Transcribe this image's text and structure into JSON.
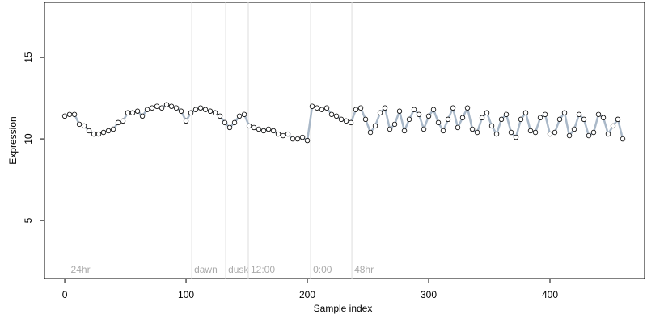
{
  "chart_data": {
    "type": "scatter",
    "xlabel": "Sample index",
    "ylabel": "Expression",
    "xlim": [
      -16.7,
      478
    ],
    "ylim": [
      1.44,
      18.37
    ],
    "xticks": [
      0,
      100,
      200,
      300,
      400
    ],
    "yticks": [
      5,
      10,
      15
    ],
    "line_color": "#a9b8c8",
    "point_color": "#ffffff",
    "annotations": [
      {
        "x": 3,
        "label": "24hr",
        "line": false
      },
      {
        "x": 104.7,
        "label": "dawn",
        "line": true
      },
      {
        "x": 132.7,
        "label": "dusk",
        "line": true
      },
      {
        "x": 151.3,
        "label": "12:00",
        "line": true
      },
      {
        "x": 202.7,
        "label": "0:00",
        "line": true
      },
      {
        "x": 236.7,
        "label": "48hr",
        "line": true
      }
    ],
    "x": [
      0,
      4,
      8,
      12,
      16,
      20,
      24,
      28,
      32,
      36,
      40,
      44,
      48,
      52,
      56,
      60,
      64,
      68,
      72,
      76,
      80,
      84,
      88,
      92,
      96,
      100,
      104,
      108,
      112,
      116,
      120,
      124,
      128,
      132,
      136,
      140,
      144,
      148,
      152,
      156,
      160,
      164,
      168,
      172,
      176,
      180,
      184,
      188,
      192,
      196,
      200,
      204,
      208,
      212,
      216,
      220,
      224,
      228,
      232,
      236,
      240,
      244,
      248,
      252,
      256,
      260,
      264,
      268,
      272,
      276,
      280,
      284,
      288,
      292,
      296,
      300,
      304,
      308,
      312,
      316,
      320,
      324,
      328,
      332,
      336,
      340,
      344,
      348,
      352,
      356,
      360,
      364,
      368,
      372,
      376,
      380,
      384,
      388,
      392,
      396,
      400,
      404,
      408,
      412,
      416,
      420,
      424,
      428,
      432,
      436,
      440,
      444,
      448,
      452,
      456,
      460
    ],
    "values": [
      11.4,
      11.5,
      11.5,
      10.9,
      10.8,
      10.5,
      10.3,
      10.3,
      10.4,
      10.5,
      10.6,
      11.0,
      11.1,
      11.6,
      11.6,
      11.7,
      11.4,
      11.8,
      11.9,
      12.0,
      11.9,
      12.1,
      12.0,
      11.9,
      11.7,
      11.1,
      11.6,
      11.8,
      11.9,
      11.8,
      11.7,
      11.6,
      11.4,
      11.0,
      10.7,
      11.0,
      11.4,
      11.5,
      10.8,
      10.7,
      10.6,
      10.5,
      10.6,
      10.5,
      10.3,
      10.2,
      10.3,
      10.0,
      10.0,
      10.1,
      9.9,
      12.0,
      11.9,
      11.8,
      11.9,
      11.5,
      11.4,
      11.2,
      11.1,
      11.0,
      11.8,
      11.9,
      11.2,
      10.4,
      10.8,
      11.6,
      11.9,
      10.6,
      10.9,
      11.7,
      10.5,
      11.2,
      11.8,
      11.5,
      10.6,
      11.4,
      11.8,
      11.0,
      10.5,
      11.2,
      11.9,
      10.7,
      11.3,
      11.9,
      10.6,
      10.4,
      11.3,
      11.6,
      10.8,
      10.3,
      11.2,
      11.5,
      10.4,
      10.1,
      11.2,
      11.6,
      10.5,
      10.4,
      11.3,
      11.5,
      10.3,
      10.4,
      11.2,
      11.6,
      10.2,
      10.6,
      11.5,
      11.2,
      10.2,
      10.4,
      11.5,
      11.3,
      10.3,
      10.8,
      11.2,
      10.0
    ]
  }
}
